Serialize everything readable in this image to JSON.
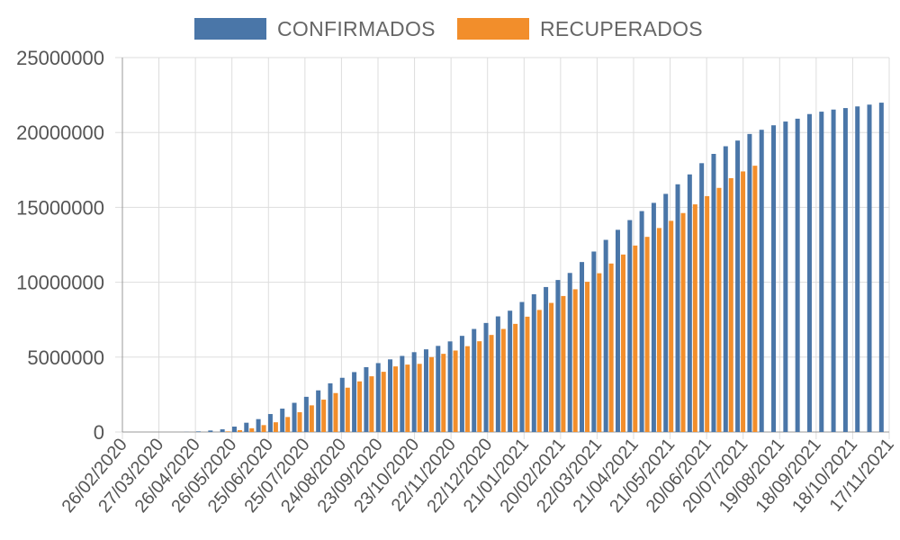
{
  "chart_data": {
    "type": "bar",
    "legend_position": "top",
    "grid": true,
    "colors": {
      "CONFIRMADOS": "#4a76a8",
      "RECUPERADOS": "#f28e2b",
      "grid": "#dddddd",
      "axis": "#999999"
    },
    "ylim": [
      0,
      25000000
    ],
    "yticks": [
      "25000000",
      "20000000",
      "15000000",
      "10000000",
      "5000000",
      "0"
    ],
    "xtick_labels": [
      "26/02/2020",
      "27/03/2020",
      "26/04/2020",
      "26/05/2020",
      "25/06/2020",
      "25/07/2020",
      "24/08/2020",
      "23/09/2020",
      "23/10/2020",
      "22/11/2020",
      "22/12/2020",
      "21/01/2021",
      "20/02/2021",
      "22/03/2021",
      "21/04/2021",
      "21/05/2021",
      "20/06/2021",
      "20/07/2021",
      "19/08/2021",
      "18/09/2021",
      "18/10/2021",
      "17/11/2021"
    ],
    "series": [
      {
        "name": "CONFIRMADOS",
        "values": [
          0,
          0,
          0,
          0,
          0,
          8000,
          40000,
          100000,
          180000,
          360000,
          620000,
          860000,
          1200000,
          1560000,
          1950000,
          2350000,
          2780000,
          3250000,
          3620000,
          4000000,
          4330000,
          4600000,
          4850000,
          5080000,
          5330000,
          5520000,
          5750000,
          6050000,
          6420000,
          6880000,
          7280000,
          7720000,
          8100000,
          8680000,
          9200000,
          9680000,
          10150000,
          10620000,
          11350000,
          12050000,
          12830000,
          13500000,
          14150000,
          14750000,
          15300000,
          15900000,
          16540000,
          17200000,
          17950000,
          18570000,
          19080000,
          19460000,
          19900000,
          20180000,
          20480000,
          20730000,
          20920000,
          21230000,
          21390000,
          21530000,
          21630000,
          21740000,
          21860000,
          21990000
        ]
      },
      {
        "name": "RECUPERADOS",
        "values": [
          0,
          0,
          0,
          0,
          0,
          0,
          0,
          0,
          40000,
          120000,
          250000,
          460000,
          650000,
          1000000,
          1320000,
          1780000,
          2160000,
          2600000,
          2960000,
          3380000,
          3720000,
          4020000,
          4380000,
          4500000,
          4550000,
          5000000,
          5220000,
          5440000,
          5730000,
          6060000,
          6480000,
          6880000,
          7220000,
          7700000,
          8150000,
          8620000,
          9080000,
          9530000,
          10030000,
          10600000,
          11250000,
          11850000,
          12450000,
          13030000,
          13620000,
          14100000,
          14620000,
          15200000,
          15750000,
          16300000,
          16950000,
          17400000,
          17780000
        ]
      }
    ]
  }
}
